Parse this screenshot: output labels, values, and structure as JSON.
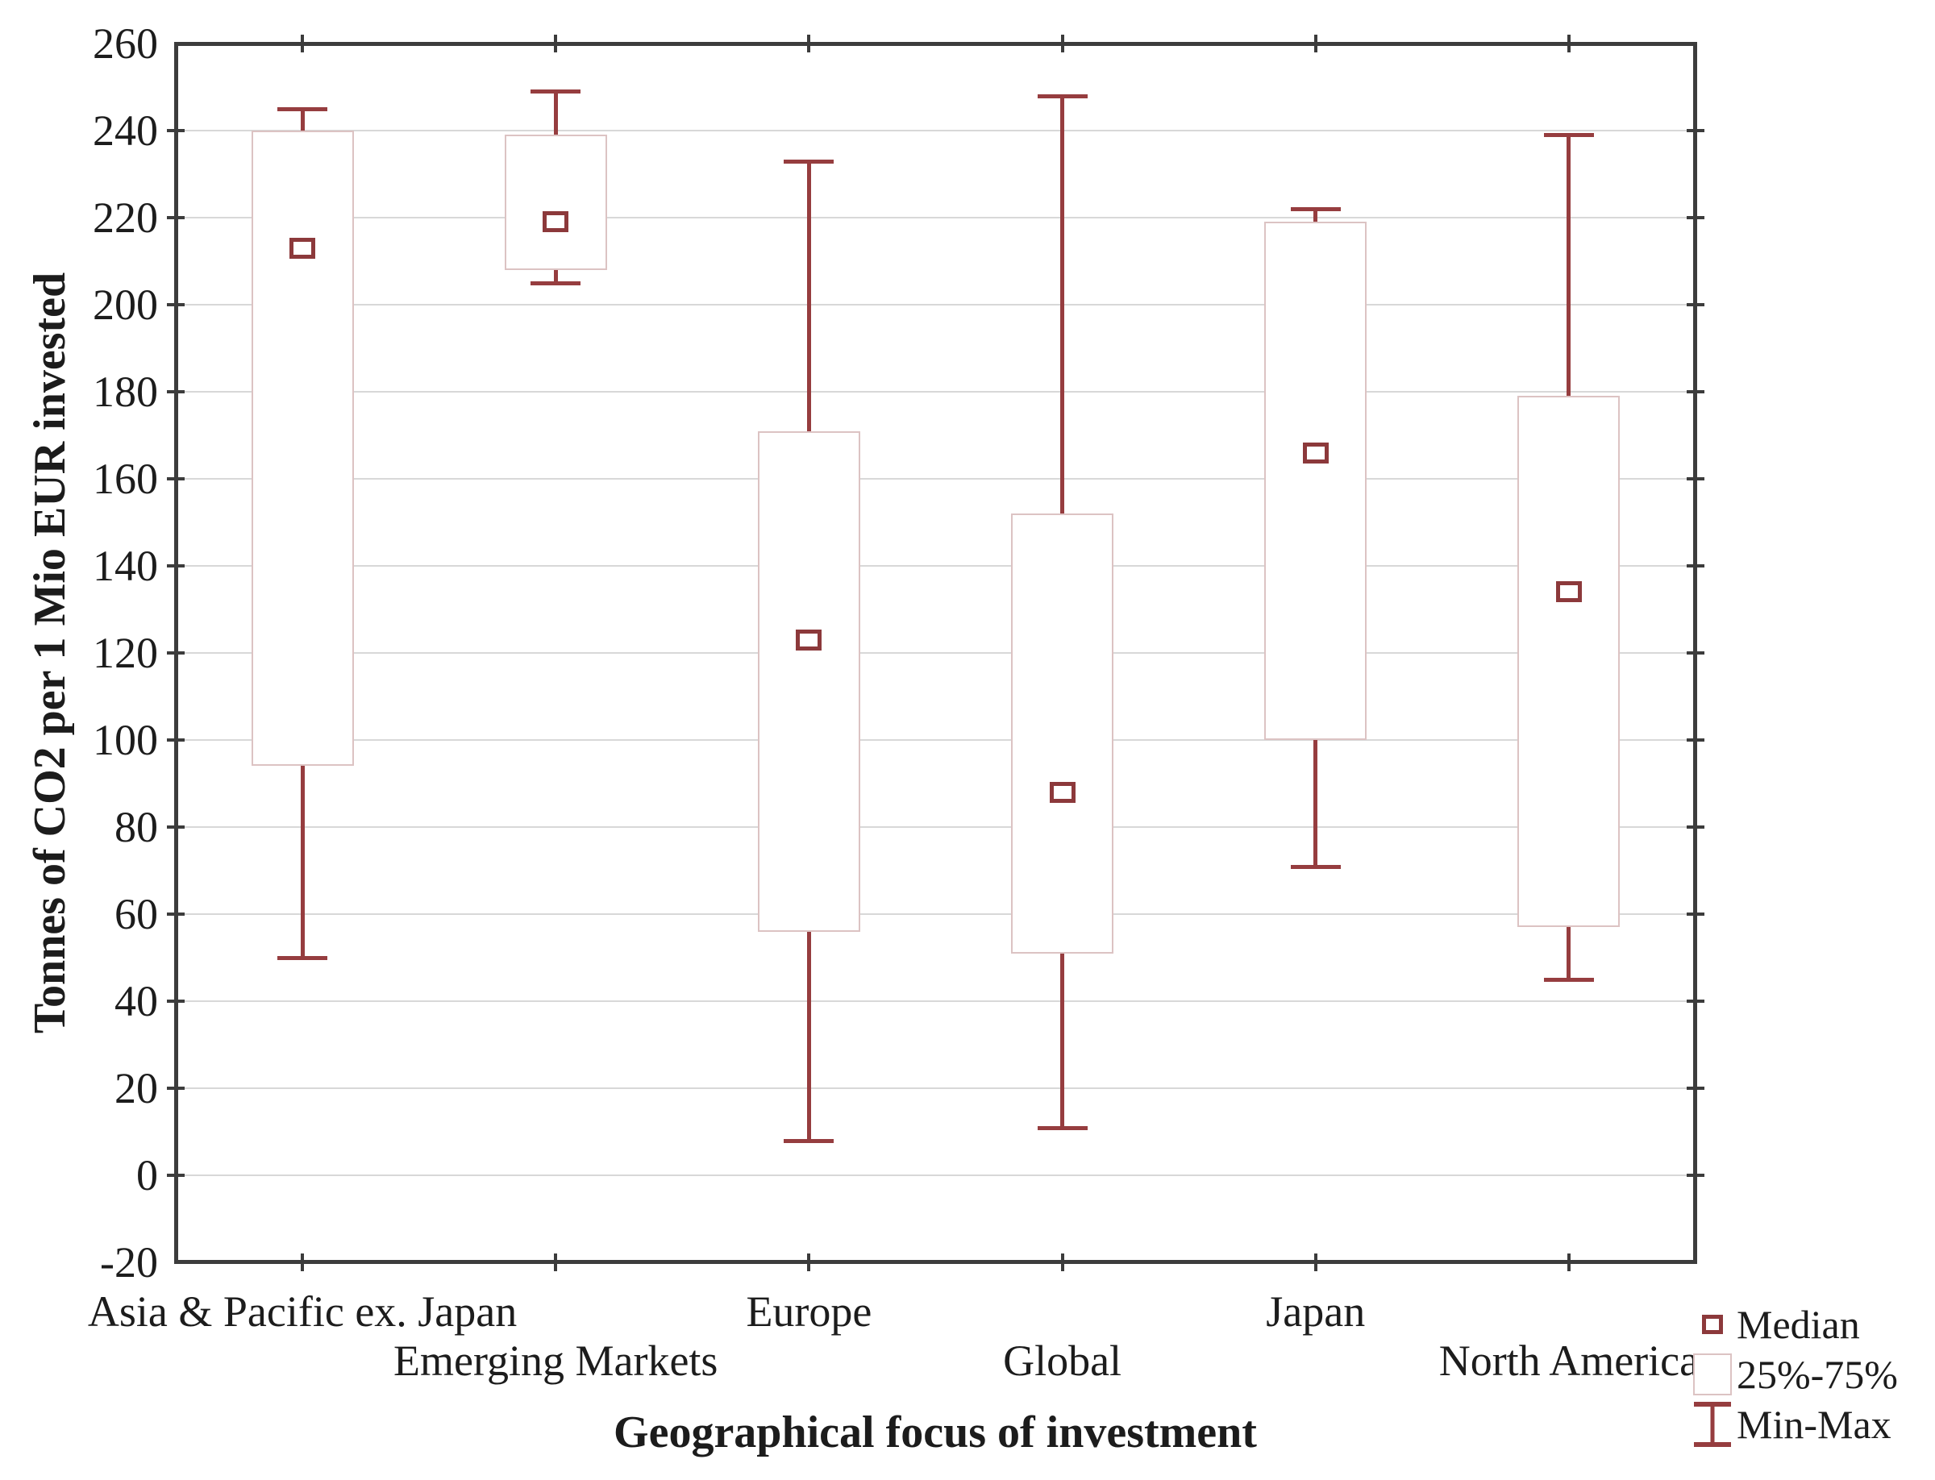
{
  "chart_data": {
    "type": "box",
    "xlabel": "Geographical focus of investment",
    "ylabel": "Tonnes of CO2 per 1 Mio EUR invested",
    "ylim": [
      -20,
      260
    ],
    "ytick_step": 20,
    "grid": true,
    "legend_position": "bottom-right",
    "yticks": [
      "260",
      "240",
      "220",
      "200",
      "180",
      "160",
      "140",
      "120",
      "100",
      "80",
      "60",
      "40",
      "20",
      "0",
      "-20"
    ],
    "categories": [
      "Asia & Pacific ex. Japan",
      "Emerging Markets",
      "Europe",
      "Global",
      "Japan",
      "North America"
    ],
    "series": [
      {
        "name": "Asia & Pacific ex. Japan",
        "min": 50,
        "q1": 94,
        "median": 213,
        "q3": 240,
        "max": 245
      },
      {
        "name": "Emerging Markets",
        "min": 205,
        "q1": 208,
        "median": 219,
        "q3": 239,
        "max": 249
      },
      {
        "name": "Europe",
        "min": 8,
        "q1": 56,
        "median": 123,
        "q3": 171,
        "max": 233
      },
      {
        "name": "Global",
        "min": 11,
        "q1": 51,
        "median": 88,
        "q3": 152,
        "max": 248
      },
      {
        "name": "Japan",
        "min": 71,
        "q1": 100,
        "median": 166,
        "q3": 219,
        "max": 222
      },
      {
        "name": "North America",
        "min": 45,
        "q1": 57,
        "median": 134,
        "q3": 179,
        "max": 239
      }
    ],
    "legend": [
      {
        "label": "Median",
        "symbol": "median-square"
      },
      {
        "label": "25%-75%",
        "symbol": "iqr-box"
      },
      {
        "label": "Min-Max",
        "symbol": "whisker"
      }
    ],
    "colors": {
      "whisker": "#963d3f",
      "median_border": "#8c393b",
      "box_border": "#dcc3c3",
      "gridline": "#d8d8d8",
      "frame": "#3c3c3c",
      "text": "#1c1c1c",
      "background": "#ffffff"
    }
  }
}
